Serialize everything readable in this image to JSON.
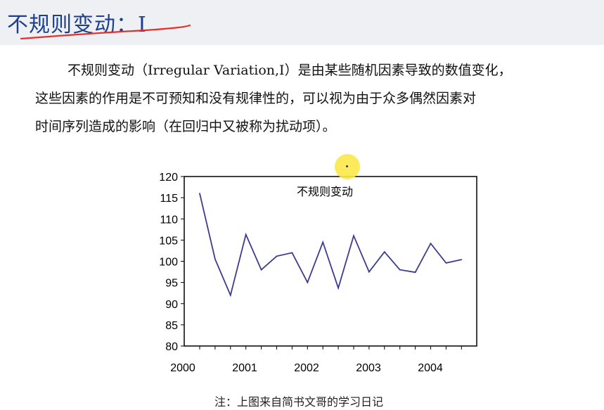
{
  "title": "不规则变动：I",
  "paragraph": {
    "line1": "不规则变动（Irregular Variation,I）是由某些随机因素导致的数值变化，",
    "line2": "这些因素的作用是不可预知和没有规律性的，可以视为由于众多偶然因素对",
    "line3": "时间序列造成的影响（在回归中又被称为扰动项）。"
  },
  "note": "注：上图来自简书文哥的学习日记",
  "colors": {
    "title": "#1c3f8e",
    "underline": "#e8302a",
    "line": "#3b3b8f",
    "highlight": "#fbe94a"
  },
  "chart_data": {
    "type": "line",
    "title": "不规则变动",
    "xlabel": "",
    "ylabel": "",
    "ylim": [
      80,
      120
    ],
    "yticks": [
      80,
      85,
      90,
      95,
      100,
      105,
      110,
      115,
      120
    ],
    "x_tick_labels": [
      "2000",
      "2001",
      "2002",
      "2003",
      "2004"
    ],
    "grid": false,
    "series": [
      {
        "values": [
          116,
          100.5,
          92,
          106.3,
          98,
          101.2,
          102,
          95,
          104.5,
          93.7,
          106,
          97.5,
          102.2,
          98,
          97.4,
          104.2,
          99.6,
          100.4
        ]
      }
    ]
  }
}
